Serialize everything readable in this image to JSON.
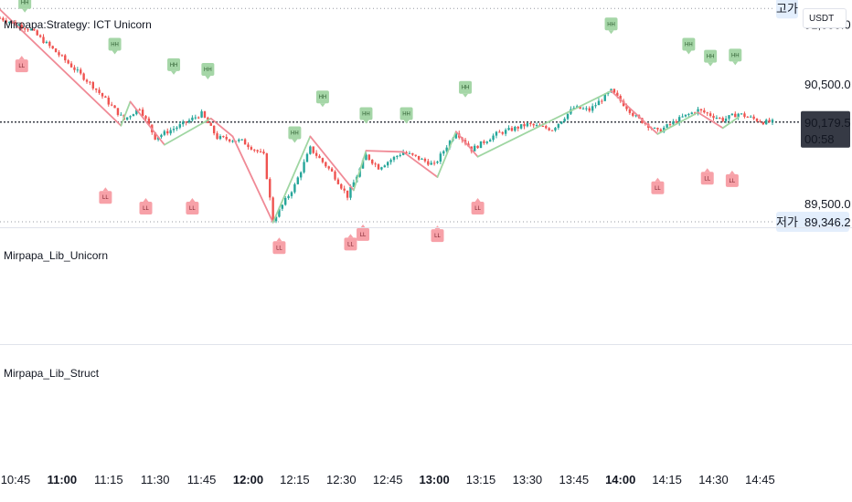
{
  "panes": {
    "main_title": "Mirpapa:Strategy: ICT Unicorn",
    "unicorn_title": "Mirpapa_Lib_Unicorn",
    "struct_title": "Mirpapa_Lib_Struct"
  },
  "price_axis": {
    "currency": "USDT",
    "ticks": [
      {
        "value": 91000,
        "label": "91,000.0"
      },
      {
        "value": 90500,
        "label": "90,500.0"
      },
      {
        "value": 89500,
        "label": "89,500.0"
      }
    ],
    "high_tag": "고가",
    "low_tag": "저가",
    "low_value": 89346.2,
    "low_label": "89,346.2",
    "last_value": 90179.5,
    "last_label": "90,179.5",
    "countdown": "00:58"
  },
  "colors": {
    "up": "#26a69a",
    "down": "#ef5350",
    "hh_marker": "#a5d6a7",
    "ll_marker": "#f7a1a8",
    "zz_up": "#9fd6a2",
    "zz_down": "#f08a96",
    "last_price_bg": "#363a45"
  },
  "chart_data": {
    "type": "candlestick",
    "x_ticks": [
      {
        "label": "10:45",
        "bold": false
      },
      {
        "label": "11:00",
        "bold": true
      },
      {
        "label": "11:15",
        "bold": false
      },
      {
        "label": "11:30",
        "bold": false
      },
      {
        "label": "11:45",
        "bold": false
      },
      {
        "label": "12:00",
        "bold": true
      },
      {
        "label": "12:15",
        "bold": false
      },
      {
        "label": "12:30",
        "bold": false
      },
      {
        "label": "12:45",
        "bold": false
      },
      {
        "label": "13:00",
        "bold": true
      },
      {
        "label": "13:15",
        "bold": false
      },
      {
        "label": "13:30",
        "bold": false
      },
      {
        "label": "13:45",
        "bold": false
      },
      {
        "label": "14:00",
        "bold": true
      },
      {
        "label": "14:15",
        "bold": false
      },
      {
        "label": "14:30",
        "bold": false
      },
      {
        "label": "14:45",
        "bold": false
      }
    ],
    "time_range": [
      "10:40",
      "14:49"
    ],
    "price_range": [
      89300,
      91170
    ],
    "price_path": [
      [
        "10:40",
        91050
      ],
      [
        "10:50",
        90950
      ],
      [
        "11:00",
        90720
      ],
      [
        "11:10",
        90480
      ],
      [
        "11:20",
        90200
      ],
      [
        "11:25",
        90300
      ],
      [
        "11:30",
        90050
      ],
      [
        "11:38",
        90150
      ],
      [
        "11:45",
        90250
      ],
      [
        "11:50",
        90050
      ],
      [
        "11:58",
        90020
      ],
      [
        "12:05",
        89900
      ],
      [
        "12:08",
        89360
      ],
      [
        "12:15",
        89650
      ],
      [
        "12:20",
        89960
      ],
      [
        "12:27",
        89760
      ],
      [
        "12:32",
        89560
      ],
      [
        "12:38",
        89900
      ],
      [
        "12:42",
        89800
      ],
      [
        "12:50",
        89930
      ],
      [
        "13:00",
        89820
      ],
      [
        "13:07",
        90100
      ],
      [
        "13:12",
        89950
      ],
      [
        "13:20",
        90080
      ],
      [
        "13:30",
        90160
      ],
      [
        "13:38",
        90120
      ],
      [
        "13:45",
        90300
      ],
      [
        "13:50",
        90280
      ],
      [
        "13:57",
        90440
      ],
      [
        "14:05",
        90220
      ],
      [
        "14:12",
        90100
      ],
      [
        "14:20",
        90220
      ],
      [
        "14:25",
        90280
      ],
      [
        "14:33",
        90200
      ],
      [
        "14:38",
        90250
      ],
      [
        "14:46",
        90180
      ]
    ],
    "zigzag": [
      [
        "10:40",
        91120
      ],
      [
        "11:19",
        90150
      ],
      [
        "11:22",
        90350
      ],
      [
        "11:33",
        89990
      ],
      [
        "11:48",
        90210
      ],
      [
        "11:55",
        90060
      ],
      [
        "12:08",
        89340
      ],
      [
        "12:20",
        90060
      ],
      [
        "12:34",
        89610
      ],
      [
        "12:38",
        89940
      ],
      [
        "12:50",
        89930
      ],
      [
        "13:01",
        89720
      ],
      [
        "13:07",
        90100
      ],
      [
        "13:14",
        89890
      ],
      [
        "13:57",
        90440
      ],
      [
        "14:12",
        90080
      ],
      [
        "14:25",
        90260
      ],
      [
        "14:33",
        90130
      ],
      [
        "14:38",
        90220
      ]
    ],
    "markers": [
      {
        "type": "HH",
        "time": "10:48",
        "price": 91180,
        "label": "HH"
      },
      {
        "type": "HH",
        "time": "11:17",
        "price": 90830,
        "label": "HH"
      },
      {
        "type": "HH",
        "time": "11:36",
        "price": 90660,
        "label": "HH"
      },
      {
        "type": "HH",
        "time": "11:47",
        "price": 90620,
        "label": "HH"
      },
      {
        "type": "HH",
        "time": "12:15",
        "price": 90090,
        "label": "HH"
      },
      {
        "type": "HH",
        "time": "12:24",
        "price": 90390,
        "label": "HH"
      },
      {
        "type": "HH",
        "time": "12:38",
        "price": 90250,
        "label": "HH"
      },
      {
        "type": "HH",
        "time": "12:51",
        "price": 90250,
        "label": "HH"
      },
      {
        "type": "HH",
        "time": "13:10",
        "price": 90470,
        "label": "HH"
      },
      {
        "type": "HH",
        "time": "13:57",
        "price": 91000,
        "label": "HH"
      },
      {
        "type": "HH",
        "time": "14:22",
        "price": 90830,
        "label": "HH"
      },
      {
        "type": "HH",
        "time": "14:29",
        "price": 90730,
        "label": "HH"
      },
      {
        "type": "HH",
        "time": "14:37",
        "price": 90740,
        "label": "HH"
      },
      {
        "type": "LL",
        "time": "10:47",
        "price": 90650,
        "label": "LL"
      },
      {
        "type": "LL",
        "time": "11:14",
        "price": 89550,
        "label": "LL"
      },
      {
        "type": "LL",
        "time": "11:27",
        "price": 89460,
        "label": "LL"
      },
      {
        "type": "LL",
        "time": "11:42",
        "price": 89460,
        "label": "LL"
      },
      {
        "type": "LL",
        "time": "12:10",
        "price": 89130,
        "label": "LL"
      },
      {
        "type": "LL",
        "time": "12:33",
        "price": 89160,
        "label": "LL"
      },
      {
        "type": "LL",
        "time": "12:37",
        "price": 89240,
        "label": "LL"
      },
      {
        "type": "LL",
        "time": "13:01",
        "price": 89230,
        "label": "LL"
      },
      {
        "type": "LL",
        "time": "13:14",
        "price": 89460,
        "label": "LL"
      },
      {
        "type": "LL",
        "time": "14:12",
        "price": 89630,
        "label": "LL"
      },
      {
        "type": "LL",
        "time": "14:28",
        "price": 89710,
        "label": "LL"
      },
      {
        "type": "LL",
        "time": "14:36",
        "price": 89690,
        "label": "LL"
      }
    ],
    "high_line": 91130,
    "low_line": 89346.2,
    "last_price": 90179.5
  }
}
